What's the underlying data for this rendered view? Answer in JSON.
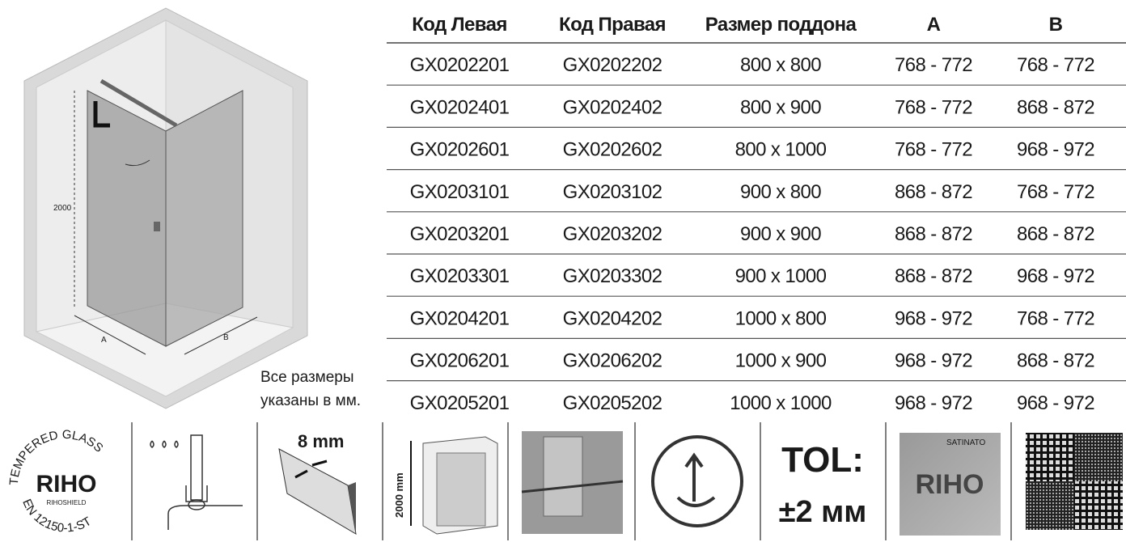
{
  "table": {
    "header": [
      "Код Левая",
      "Код Правая",
      "Размер поддона",
      "A",
      "B"
    ],
    "rows": [
      [
        "GX0202201",
        "GX0202202",
        "800 x 800",
        "768 - 772",
        "768 - 772"
      ],
      [
        "GX0202401",
        "GX0202402",
        "800 x 900",
        "768 - 772",
        "868 - 872"
      ],
      [
        "GX0202601",
        "GX0202602",
        "800 x 1000",
        "768 - 772",
        "968 - 972"
      ],
      [
        "GX0203101",
        "GX0203102",
        "900 x 800",
        "868 - 872",
        "768 - 772"
      ],
      [
        "GX0203201",
        "GX0203202",
        "900 x 900",
        "868 - 872",
        "868 - 872"
      ],
      [
        "GX0203301",
        "GX0203302",
        "900 x 1000",
        "868 - 872",
        "968 - 972"
      ],
      [
        "GX0204201",
        "GX0204202",
        "1000 x 800",
        "968 - 972",
        "768 - 772"
      ],
      [
        "GX0206201",
        "GX0206202",
        "1000 x 900",
        "968 - 972",
        "868 - 872"
      ],
      [
        "GX0205201",
        "GX0205202",
        "1000 x 1000",
        "968 - 972",
        "968 - 972"
      ]
    ]
  },
  "note": [
    "Все размеры",
    "указаны в мм."
  ],
  "drawing": {
    "height": "2000",
    "a": "A",
    "b": "B"
  },
  "icons": {
    "certificate": {
      "arc_top": "TEMPERED GLASS",
      "brand": "RIHO",
      "sub": "RIHOSHIELD",
      "arc_bottom": "EN 12150-1-ST"
    },
    "thickness": "8 mm",
    "height": "2000 mm",
    "tolerance": [
      "TOL:",
      "±2 мм"
    ],
    "satinato": {
      "label": "SATINATO",
      "brand": "RIHO"
    }
  }
}
